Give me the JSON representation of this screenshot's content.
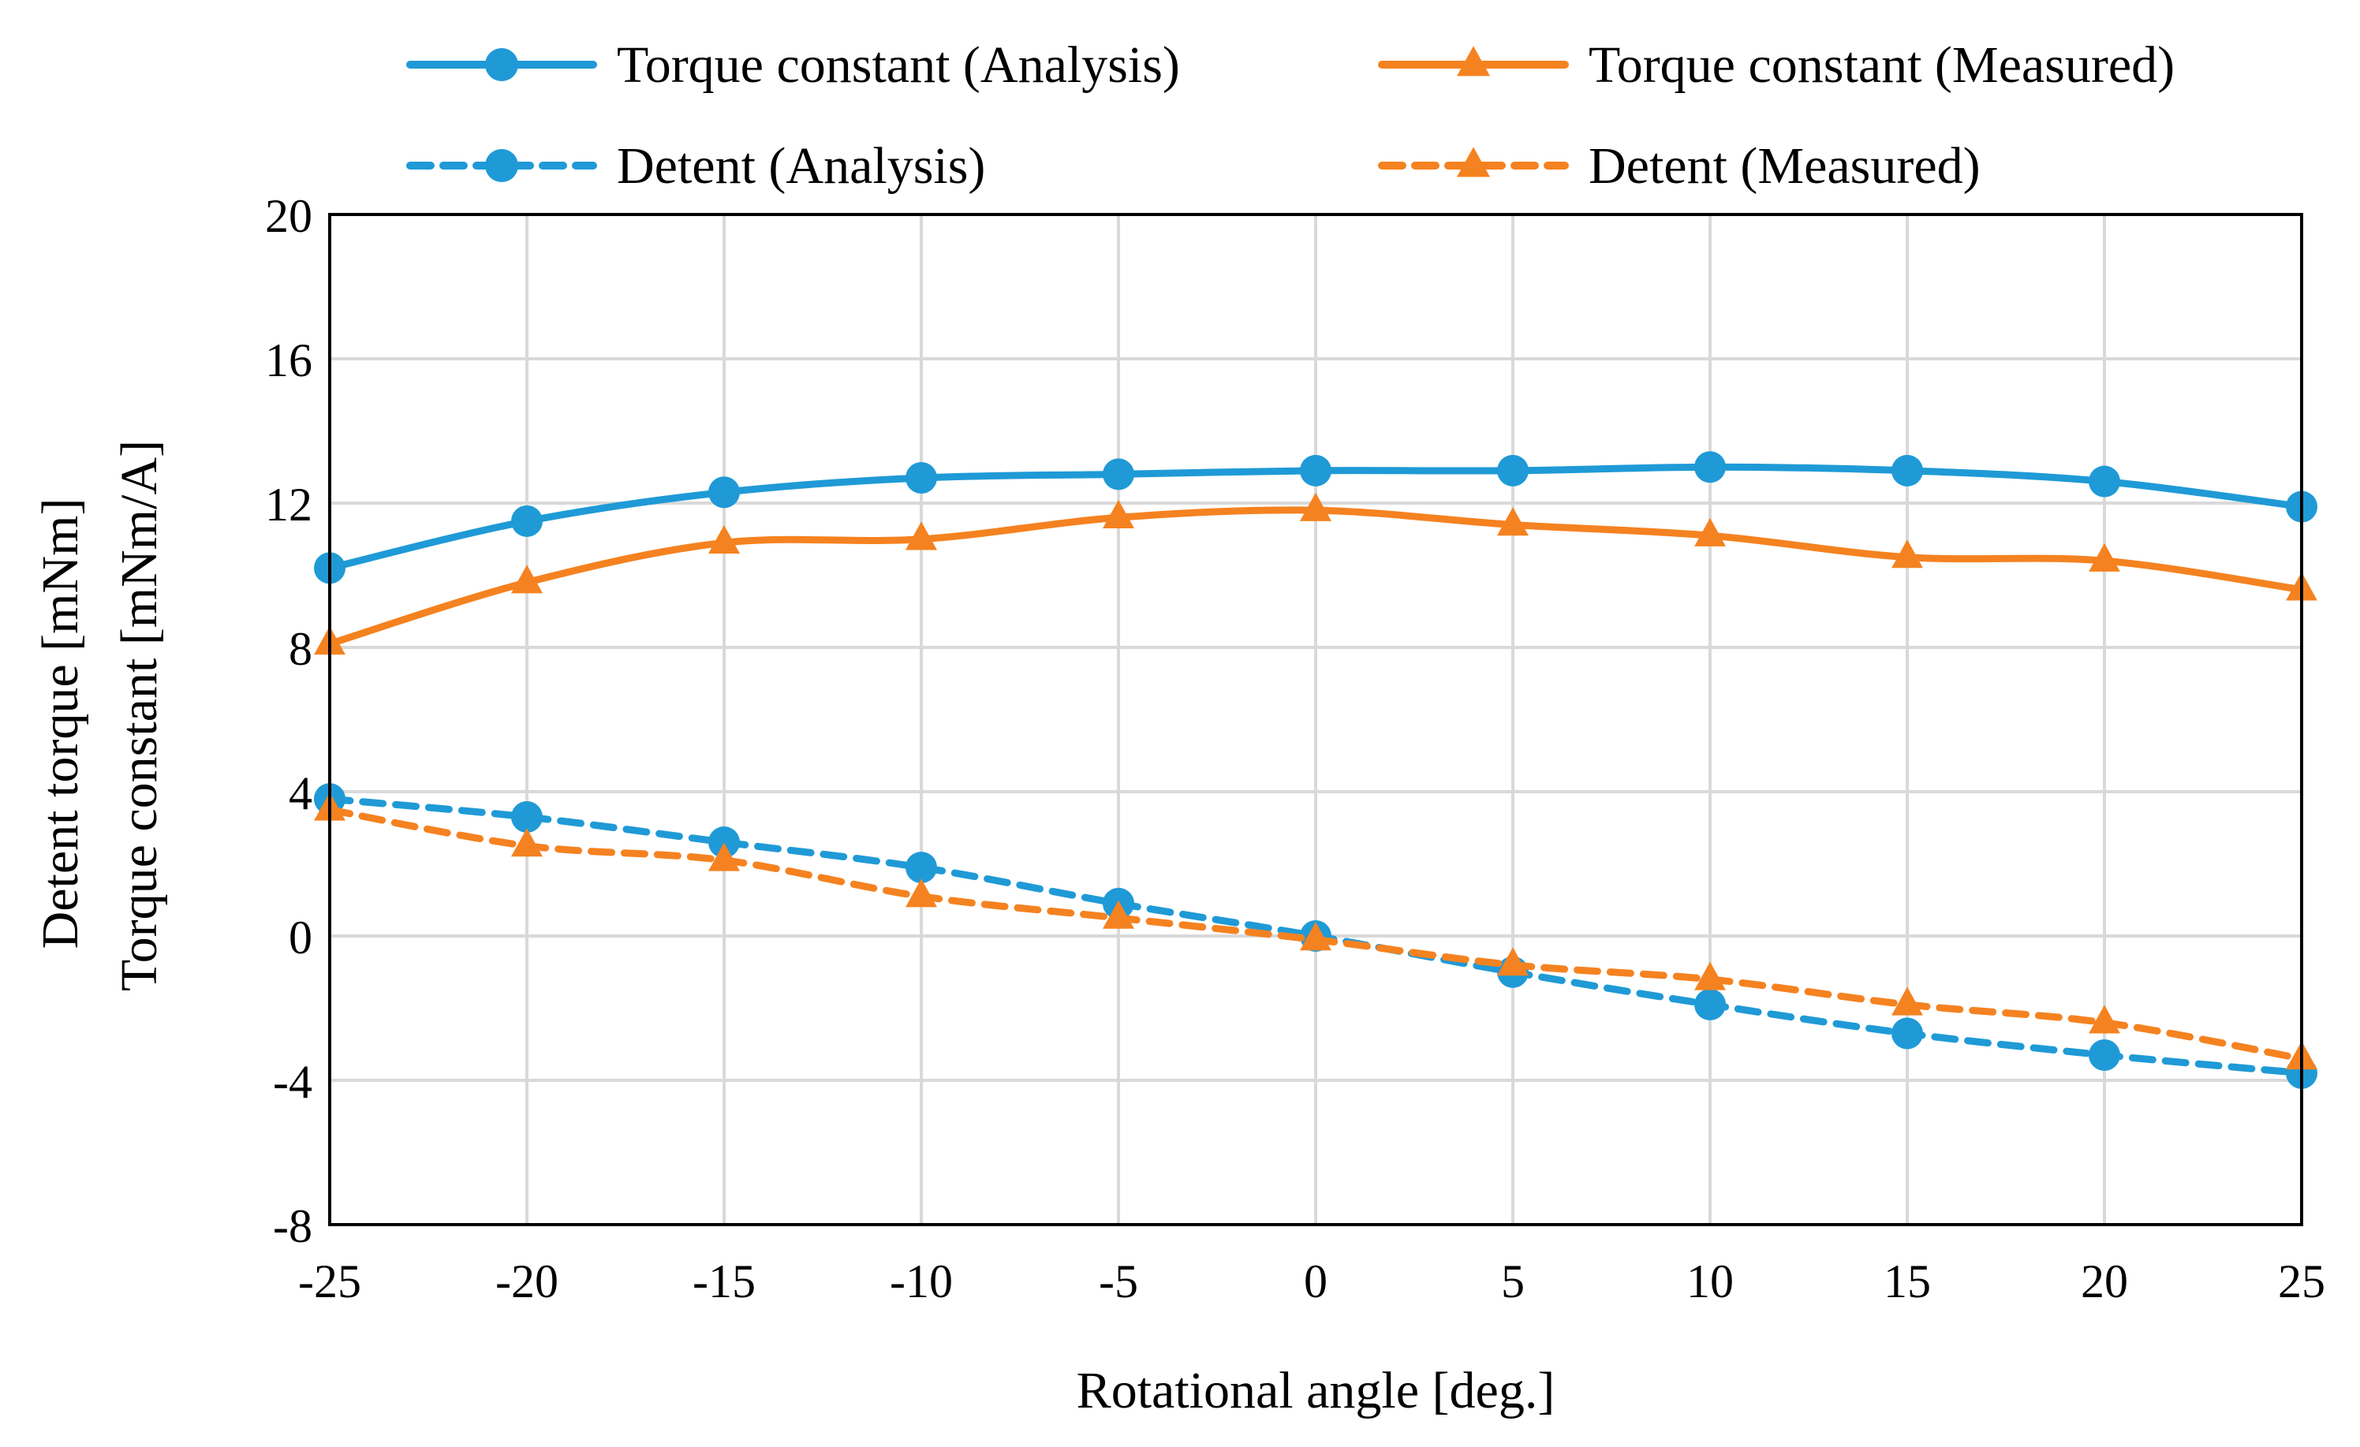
{
  "chart_data": {
    "type": "line",
    "title": "",
    "xlabel": "Rotational angle [deg.]",
    "ylabel_lines": [
      "Detent torque [mNm]",
      "Torque constant [mNm/A]"
    ],
    "xlim": [
      -25,
      25
    ],
    "ylim": [
      -8,
      20
    ],
    "x": [
      -25,
      -20,
      -15,
      -10,
      -5,
      0,
      5,
      10,
      15,
      20,
      25
    ],
    "x_tick_labels": [
      "-25",
      "-20",
      "-15",
      "-10",
      "-5",
      "0",
      "5",
      "10",
      "15",
      "20",
      "25"
    ],
    "y_ticks": [
      -8,
      -4,
      0,
      4,
      8,
      12,
      16,
      20
    ],
    "y_tick_labels": [
      "-8",
      "-4",
      "0",
      "4",
      "8",
      "12",
      "16",
      "20"
    ],
    "grid": true,
    "legend_position": "top",
    "series": [
      {
        "name": "Torque constant (Analysis)",
        "color": "#1f9ad6",
        "marker": "circle",
        "dash": "solid",
        "values": [
          10.2,
          11.5,
          12.3,
          12.7,
          12.8,
          12.9,
          12.9,
          13.0,
          12.9,
          12.6,
          11.9
        ]
      },
      {
        "name": "Torque constant (Measured)",
        "color": "#f58220",
        "marker": "triangle",
        "dash": "solid",
        "values": [
          8.1,
          9.8,
          10.9,
          11.0,
          11.6,
          11.8,
          11.4,
          11.1,
          10.5,
          10.4,
          9.6
        ]
      },
      {
        "name": "Detent (Analysis)",
        "color": "#1f9ad6",
        "marker": "circle",
        "dash": "dashed",
        "values": [
          3.8,
          3.3,
          2.6,
          1.9,
          0.9,
          0.0,
          -1.0,
          -1.9,
          -2.7,
          -3.3,
          -3.8
        ]
      },
      {
        "name": "Detent (Measured)",
        "color": "#f58220",
        "marker": "triangle",
        "dash": "dashed",
        "values": [
          3.5,
          2.5,
          2.1,
          1.1,
          0.5,
          -0.1,
          -0.8,
          -1.2,
          -1.9,
          -2.4,
          -3.4
        ]
      }
    ]
  }
}
